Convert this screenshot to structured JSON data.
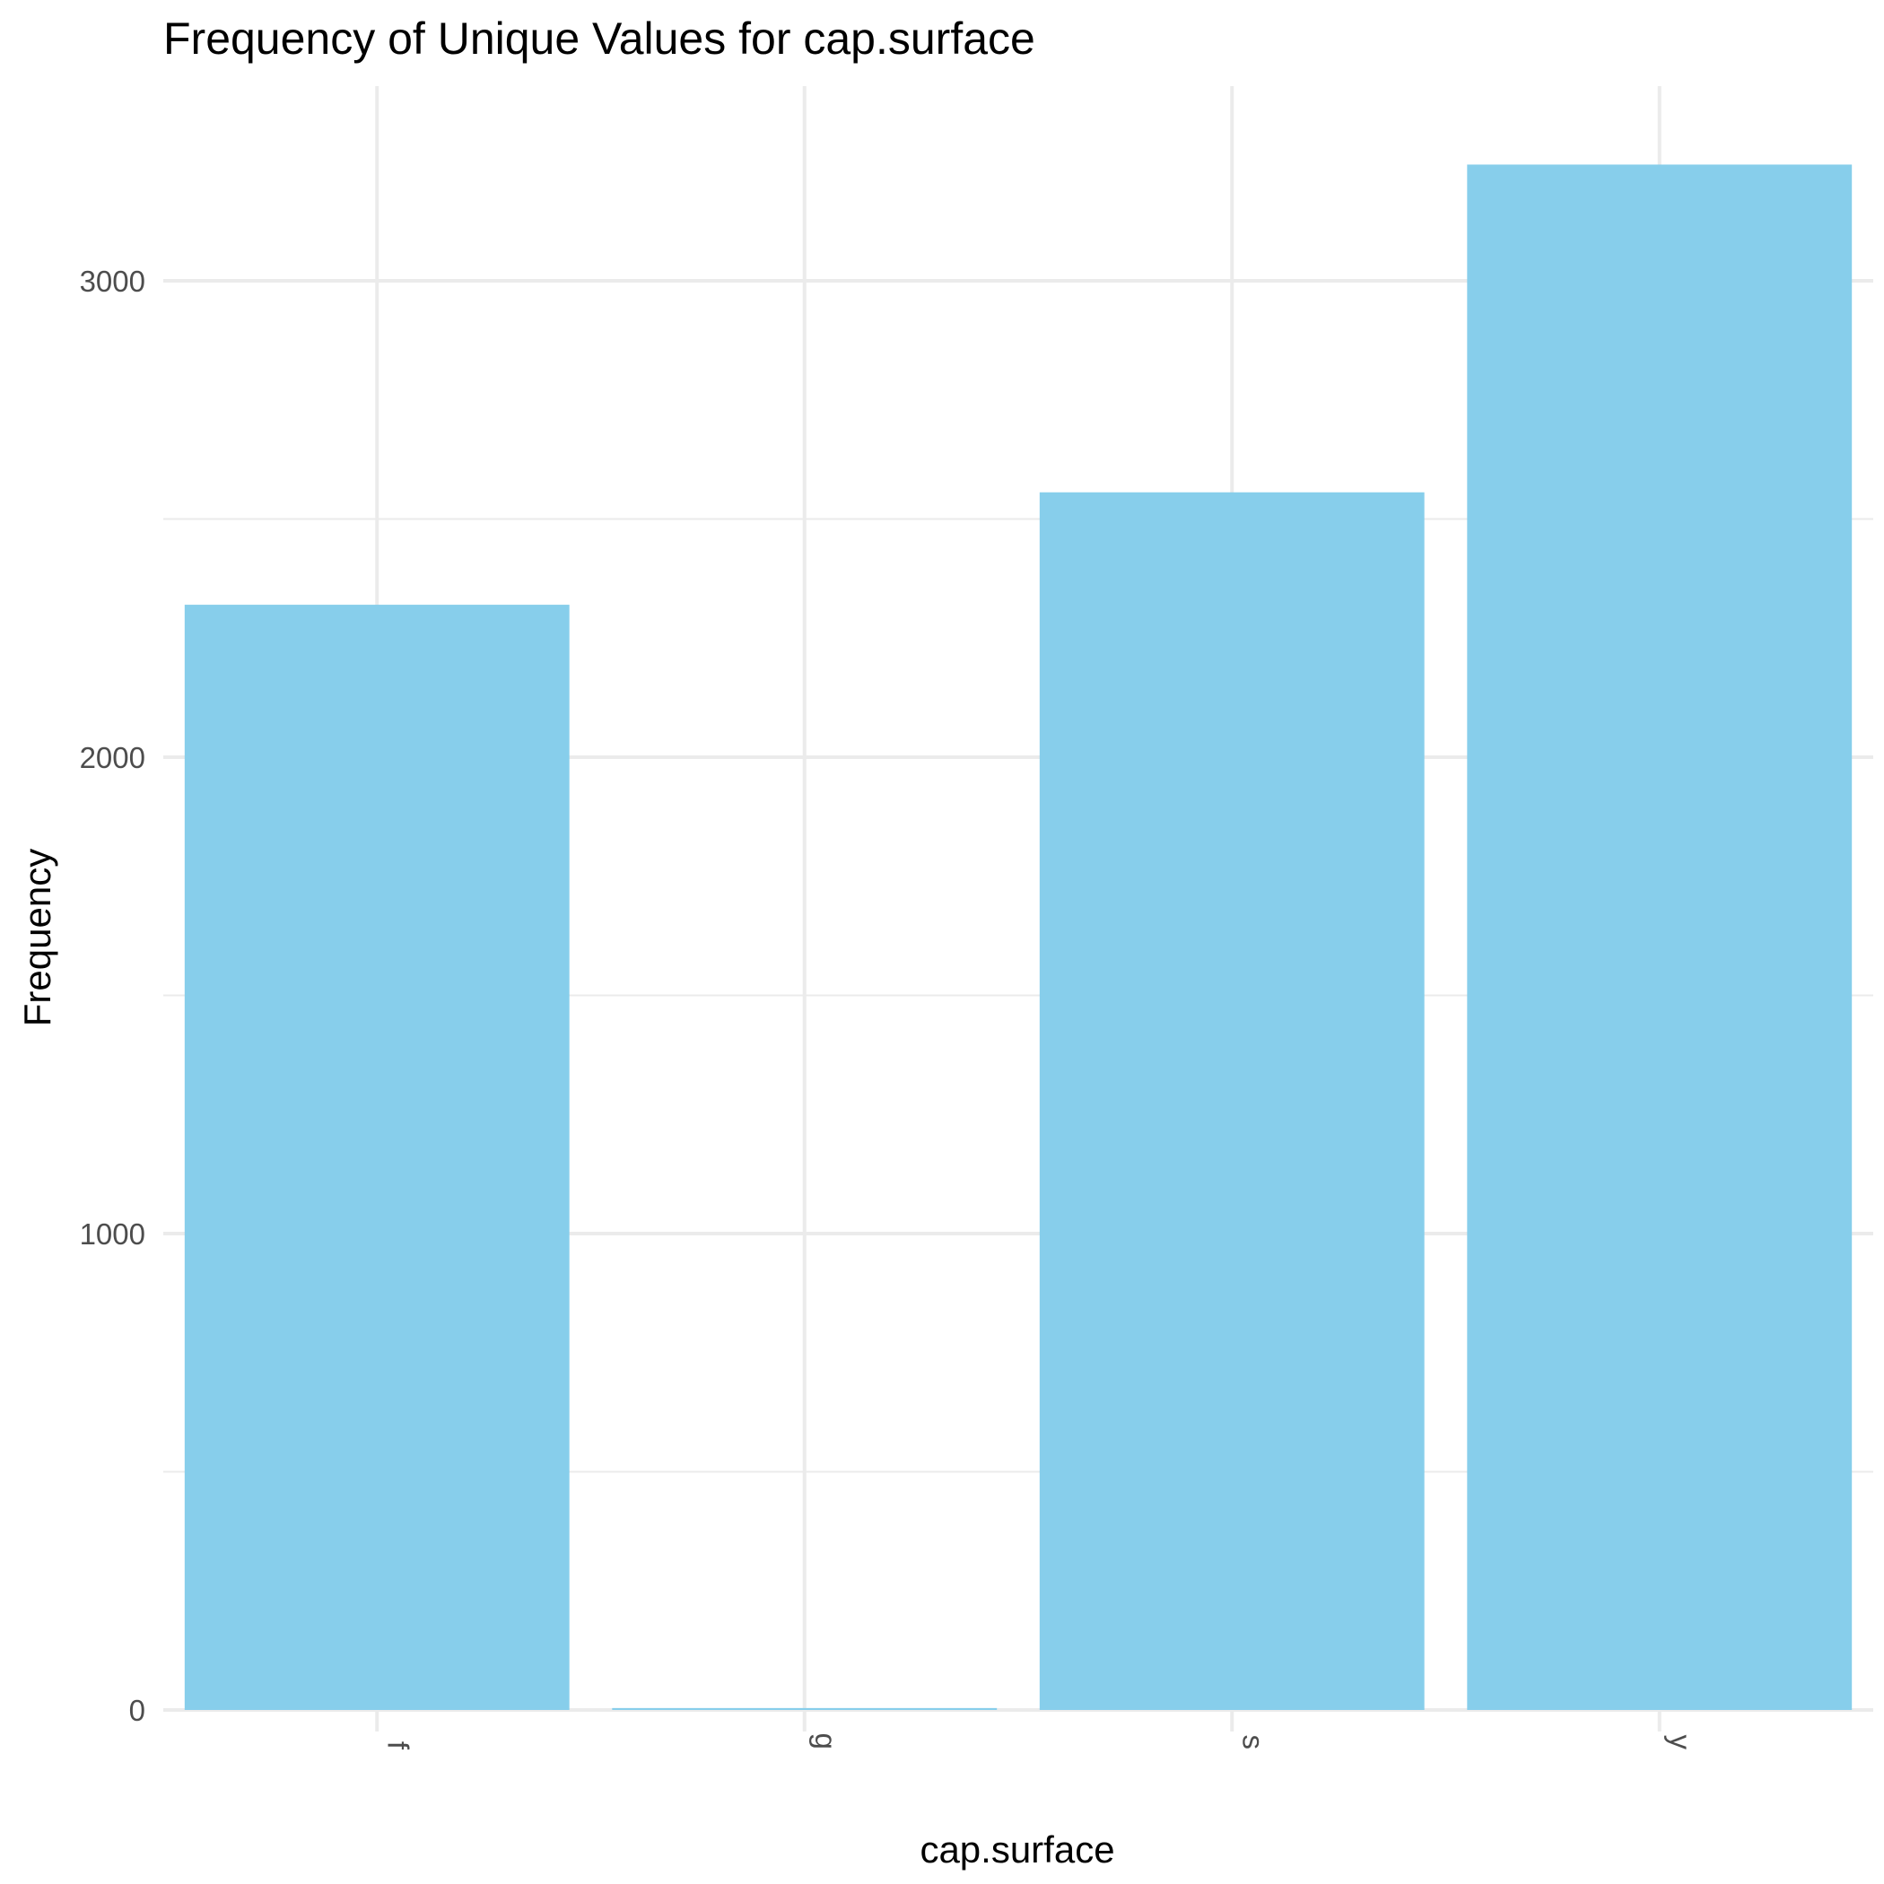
{
  "chart_data": {
    "type": "bar",
    "title": "Frequency of Unique Values for cap.surface",
    "xlabel": "cap.surface",
    "ylabel": "Frequency",
    "categories": [
      "f",
      "g",
      "s",
      "y"
    ],
    "values": [
      2320,
      4,
      2556,
      3244
    ],
    "ylim": [
      0,
      3400
    ],
    "y_ticks": [
      0,
      1000,
      2000,
      3000
    ],
    "grid": true,
    "bar_color": "#87CEEB"
  }
}
